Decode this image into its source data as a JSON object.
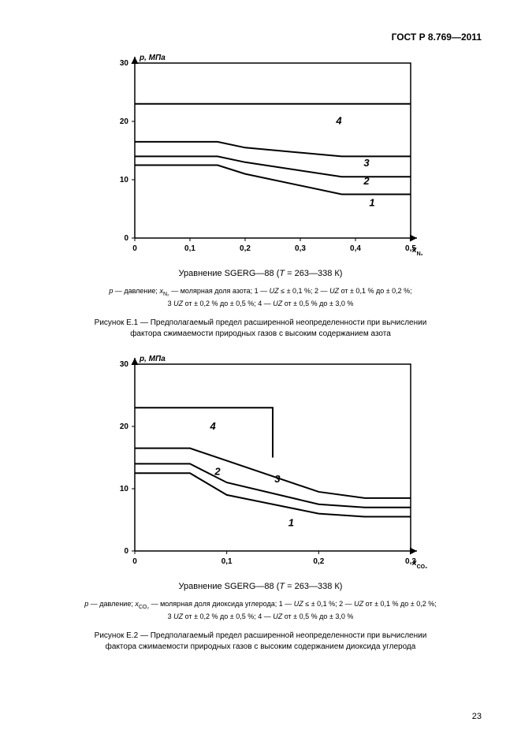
{
  "doc_header": "ГОСТ Р 8.769—2011",
  "page_number": "23",
  "chart1": {
    "type": "line",
    "y_label": "p, МПа",
    "x_label_html": "x_N2",
    "x_ticks": [
      0,
      0.1,
      0.2,
      0.3,
      0.4,
      0.5
    ],
    "x_tick_labels": [
      "0",
      "0,1",
      "0,2",
      "0,3",
      "0,4",
      "0,5"
    ],
    "y_ticks": [
      0,
      10,
      20,
      30
    ],
    "y_tick_labels": [
      "0",
      "10",
      "20",
      "30"
    ],
    "xlim": [
      0,
      0.5
    ],
    "ylim": [
      0,
      30
    ],
    "background_color": "#ffffff",
    "axis_color": "#000000",
    "line_color": "#000000",
    "line_width": 2,
    "label_fontsize": 10,
    "tick_fontsize": 10,
    "series": {
      "1": [
        [
          0,
          12.5
        ],
        [
          0.15,
          12.5
        ],
        [
          0.2,
          11
        ],
        [
          0.375,
          7.5
        ],
        [
          0.5,
          7.5
        ]
      ],
      "2": [
        [
          0,
          14
        ],
        [
          0.15,
          14
        ],
        [
          0.2,
          13
        ],
        [
          0.375,
          10.5
        ],
        [
          0.5,
          10.5
        ]
      ],
      "3": [
        [
          0,
          16.5
        ],
        [
          0.15,
          16.5
        ],
        [
          0.2,
          15.5
        ],
        [
          0.375,
          14
        ],
        [
          0.5,
          14
        ]
      ],
      "4": [
        [
          0,
          23
        ],
        [
          0.5,
          23
        ]
      ]
    },
    "series_label_positions": {
      "1": [
        0.43,
        5.5
      ],
      "2": [
        0.42,
        9.2
      ],
      "3": [
        0.42,
        12.3
      ],
      "4": [
        0.37,
        19.5
      ]
    },
    "equation_line_prefix": "Уравнение SGERG—88 (",
    "equation_T": "T",
    "equation_range": " = 263—338 К)",
    "legend_line1_a": "p",
    "legend_line1_b": " — давление;  ",
    "legend_line1_c": "x",
    "legend_line1_sub": "N₂",
    "legend_line1_d": " — молярная доля азота;  1 — ",
    "legend_line1_e": "UZ",
    "legend_line1_f": " ≤ ± 0,1 %;  2 — ",
    "legend_line1_g": "UZ",
    "legend_line1_h": " от ± 0,1 % до ± 0,2 %;",
    "legend_line2_a": "3    ",
    "legend_line2_b": "UZ",
    "legend_line2_c": " от ± 0,2 % до ± 0,5 %;  4 — ",
    "legend_line2_d": "UZ",
    "legend_line2_e": " от ± 0,5 % до ± 3,0 %",
    "caption_l1": "Рисунок Е.1 — Предполагаемый предел расширенной неопределенности при вычислении",
    "caption_l2": "фактора сжимаемости природных газов с высоким содержанием азота"
  },
  "chart2": {
    "type": "line",
    "y_label": "p, МПа",
    "x_label_html": "x_CO2",
    "x_ticks": [
      0,
      0.1,
      0.2,
      0.3
    ],
    "x_tick_labels": [
      "0",
      "0,1",
      "0,2",
      "0,3"
    ],
    "y_ticks": [
      0,
      10,
      20,
      30
    ],
    "y_tick_labels": [
      "0",
      "10",
      "20",
      "30"
    ],
    "xlim": [
      0,
      0.3
    ],
    "ylim": [
      0,
      30
    ],
    "background_color": "#ffffff",
    "axis_color": "#000000",
    "line_color": "#000000",
    "line_width": 2,
    "label_fontsize": 10,
    "tick_fontsize": 10,
    "series": {
      "1": [
        [
          0,
          12.5
        ],
        [
          0.06,
          12.5
        ],
        [
          0.1,
          9
        ],
        [
          0.2,
          6
        ],
        [
          0.25,
          5.5
        ],
        [
          0.3,
          5.5
        ]
      ],
      "2": [
        [
          0,
          14
        ],
        [
          0.06,
          14
        ],
        [
          0.1,
          11
        ],
        [
          0.2,
          7.5
        ],
        [
          0.25,
          7
        ],
        [
          0.3,
          7
        ]
      ],
      "3": [
        [
          0,
          16.5
        ],
        [
          0.06,
          16.5
        ],
        [
          0.1,
          14.5
        ],
        [
          0.2,
          9.5
        ],
        [
          0.25,
          8.5
        ],
        [
          0.3,
          8.5
        ]
      ],
      "4": [
        [
          0,
          23
        ],
        [
          0.15,
          23
        ],
        [
          0.15,
          15
        ]
      ]
    },
    "series_label_positions": {
      "1": [
        0.17,
        4
      ],
      "2": [
        0.09,
        12.2
      ],
      "3": [
        0.155,
        11
      ],
      "4": [
        0.085,
        19.5
      ]
    },
    "equation_line_prefix": "Уравнение SGERG—88 (",
    "equation_T": "T",
    "equation_range": " = 263—338 К)",
    "legend_line1_a": "p",
    "legend_line1_b": " — давление;  ",
    "legend_line1_c": "x",
    "legend_line1_sub": "CO₂",
    "legend_line1_d": " — молярная доля диоксида углерода;  1 — ",
    "legend_line1_e": "UZ",
    "legend_line1_f": " ≤ ± 0,1 %;  2 — ",
    "legend_line1_g": "UZ",
    "legend_line1_h": " от ± 0,1 % до ± 0,2 %;",
    "legend_line2_a": "3    ",
    "legend_line2_b": "UZ",
    "legend_line2_c": " от ± 0,2 % до ± 0,5 %;  4 — ",
    "legend_line2_d": "UZ",
    "legend_line2_e": " от ± 0,5 % до ± 3,0 %",
    "caption_l1": "Рисунок Е.2 — Предполагаемый предел расширенной неопределенности при вычислении",
    "caption_l2": "фактора сжимаемости природных газов с высоким содержанием диоксида углерода"
  }
}
